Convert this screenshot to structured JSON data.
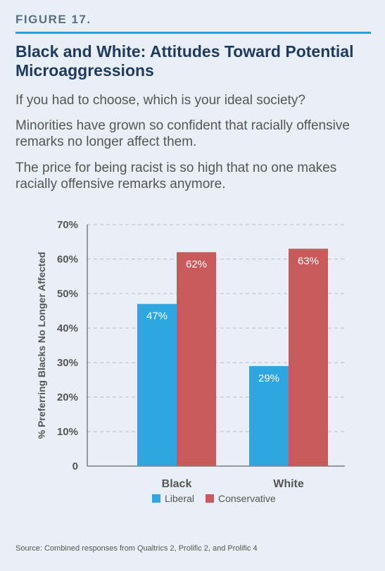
{
  "figure_label": "FIGURE 17.",
  "title": "Black and White: Attitudes Toward Potential Microaggressions",
  "question": "If you had to choose, which is your ideal society?",
  "option_a": "Minorities have grown so confident that racially offensive remarks no longer affect them.",
  "option_b": "The price for being racist is so high that no one makes racially offensive remarks anymore.",
  "source": "Source: Combined responses from Qualtrics 2, Prolific 2, and Prolific 4",
  "colors": {
    "liberal": "#2ea7e0",
    "conservative": "#c9595a",
    "grid": "#b6bcc4"
  },
  "chart_data": {
    "type": "bar",
    "categories": [
      "Black",
      "White"
    ],
    "series": [
      {
        "name": "Liberal",
        "values": [
          47,
          29
        ],
        "labels": [
          "47%",
          "29%"
        ]
      },
      {
        "name": "Conservative",
        "values": [
          62,
          63
        ],
        "labels": [
          "62%",
          "63%"
        ]
      }
    ],
    "ylabel": "% Preferring Blacks No Longer Affected",
    "ylim": [
      0,
      70
    ],
    "yticks": [
      0,
      10,
      20,
      30,
      40,
      50,
      60,
      70
    ],
    "ytick_labels": [
      "0",
      "10%",
      "20%",
      "30%",
      "40%",
      "50%",
      "60%",
      "70%"
    ],
    "grid": true,
    "legend": "bottom-center"
  }
}
